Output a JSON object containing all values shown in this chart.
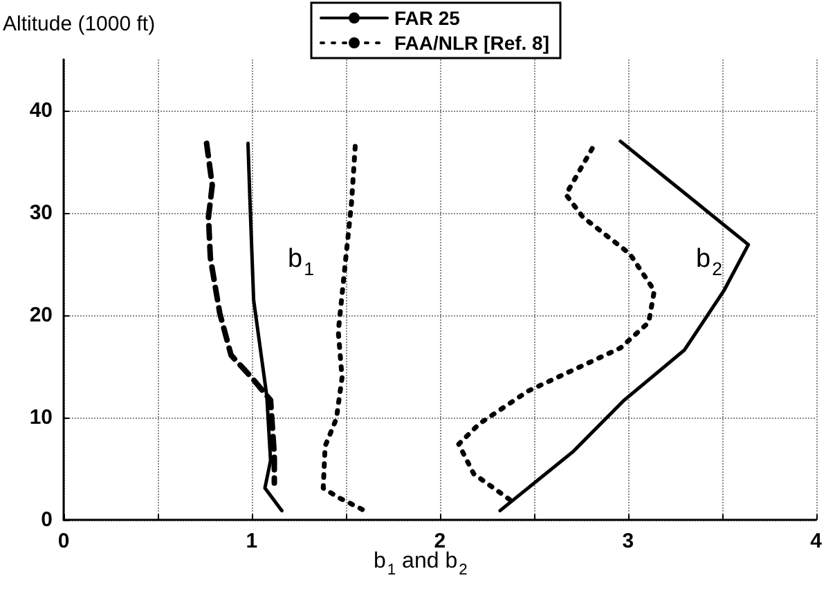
{
  "chart_data": {
    "type": "line",
    "xlabel": "b$_{1}$ and b$_{2}$",
    "ylabel": "Altitude (1000 ft)",
    "xlim": [
      0,
      4
    ],
    "xticks": [
      0,
      {
        "value": 0.5,
        "label": null
      },
      1,
      {
        "value": 1.5,
        "label": null
      },
      2,
      {
        "value": 2.5,
        "label": null
      },
      3,
      {
        "value": 3.5,
        "label": null
      },
      4
    ],
    "ylim": [
      0,
      45
    ],
    "yticks": [
      0,
      10,
      20,
      30,
      40
    ],
    "grid": true,
    "legend": "top",
    "marker": "none",
    "annotations": [
      "b$_{1}$",
      "b$_{2}$"
    ],
    "series": [
      {
        "name": "FAR 25",
        "color": "#000000",
        "line_style": "solid",
        "x": [
          0.98,
          0.99,
          1.01,
          1.08,
          1.1,
          1.07,
          1.16,
          null,
          2.96,
          3.64,
          3.51,
          3.3,
          2.98,
          2.71,
          2.32
        ],
        "values": [
          36.8,
          31.4,
          21.5,
          12.1,
          5.8,
          3.1,
          0.9,
          null,
          37.0,
          26.9,
          22.4,
          16.6,
          11.7,
          6.7,
          0.9
        ]
      },
      {
        "name": "FAA/NLR [Ref. 8]",
        "color": "#000000",
        "line_style": "dotted",
        "x": [
          1.55,
          1.53,
          1.5,
          1.46,
          1.48,
          1.45,
          1.39,
          1.38,
          1.46,
          1.6,
          null,
          2.81,
          2.67,
          2.76,
          3.01,
          3.14,
          3.11,
          2.96,
          2.47,
          2.21,
          2.1,
          2.18,
          2.37
        ],
        "values": [
          36.5,
          30.9,
          25.6,
          18.4,
          13.9,
          9.9,
          7.2,
          3.1,
          2.2,
          0.9,
          null,
          36.3,
          31.8,
          29.6,
          26.0,
          22.4,
          19.3,
          16.8,
          12.6,
          9.4,
          7.4,
          4.5,
          2.0
        ]
      },
      {
        "color": "#000000",
        "line_style": "dashed",
        "x": [
          0.76,
          0.79,
          0.77,
          0.78,
          0.83,
          0.89,
          1.0,
          1.1,
          1.12,
          1.12
        ],
        "values": [
          36.8,
          32.7,
          29.6,
          25.6,
          20.2,
          16.1,
          13.9,
          11.7,
          6.3,
          3.6
        ]
      }
    ]
  }
}
